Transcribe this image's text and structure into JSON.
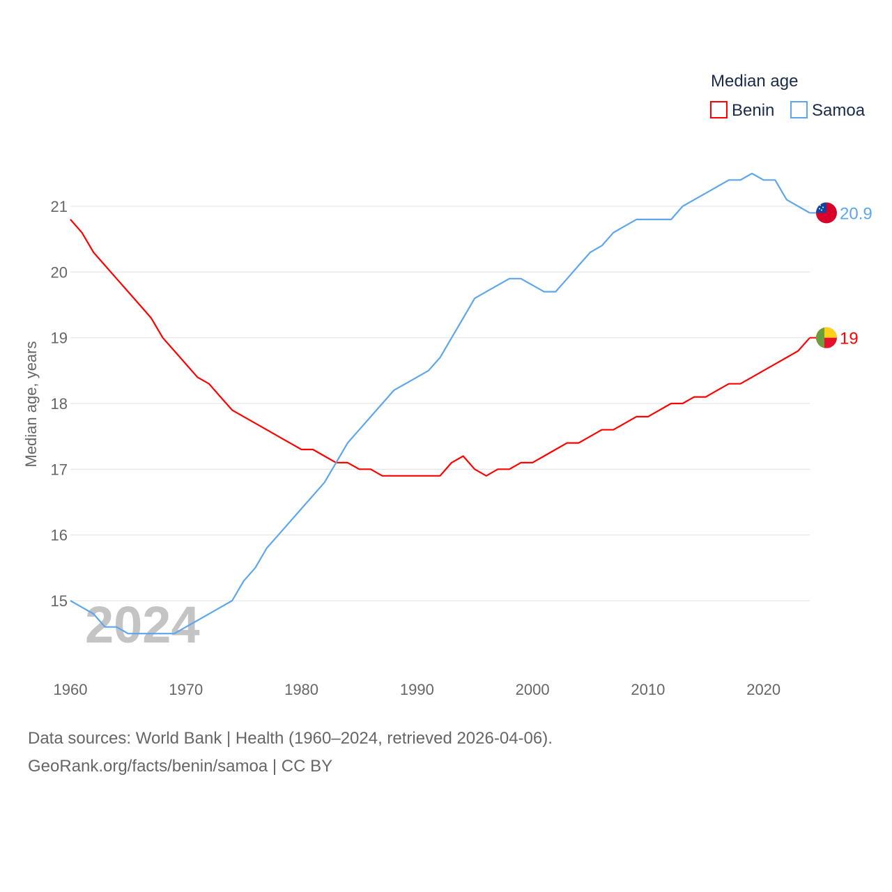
{
  "chart_data": {
    "type": "line",
    "ylabel": "Median age, years",
    "xlabel": "",
    "x": [
      1960,
      1961,
      1962,
      1963,
      1964,
      1965,
      1966,
      1967,
      1968,
      1969,
      1970,
      1971,
      1972,
      1973,
      1974,
      1975,
      1976,
      1977,
      1978,
      1979,
      1980,
      1981,
      1982,
      1983,
      1984,
      1985,
      1986,
      1987,
      1988,
      1989,
      1990,
      1991,
      1992,
      1993,
      1994,
      1995,
      1996,
      1997,
      1998,
      1999,
      2000,
      2001,
      2002,
      2003,
      2004,
      2005,
      2006,
      2007,
      2008,
      2009,
      2010,
      2011,
      2012,
      2013,
      2014,
      2015,
      2016,
      2017,
      2018,
      2019,
      2020,
      2021,
      2022,
      2023,
      2024
    ],
    "xlim": [
      1960,
      2024
    ],
    "ylim": [
      14.2,
      21.8
    ],
    "xticks": [
      "1960",
      "1970",
      "1980",
      "1990",
      "2000",
      "2010",
      "2020"
    ],
    "yticks": [
      "15",
      "16",
      "17",
      "18",
      "19",
      "20",
      "21"
    ],
    "grid": true,
    "legend": {
      "title": "Median age",
      "placement": "top-right"
    },
    "watermark_year": "2024",
    "series": [
      {
        "name": "Benin",
        "color": "#ff0000",
        "end_label": "19",
        "flag": "benin-flag",
        "values": [
          20.8,
          20.6,
          20.3,
          20.1,
          19.9,
          19.7,
          19.5,
          19.3,
          19.0,
          18.8,
          18.6,
          18.4,
          18.3,
          18.1,
          17.9,
          17.8,
          17.7,
          17.6,
          17.5,
          17.4,
          17.3,
          17.3,
          17.2,
          17.1,
          17.1,
          17.0,
          17.0,
          16.9,
          16.9,
          16.9,
          16.9,
          16.9,
          16.9,
          17.1,
          17.2,
          17.0,
          16.9,
          17.0,
          17.0,
          17.1,
          17.1,
          17.2,
          17.3,
          17.4,
          17.4,
          17.5,
          17.6,
          17.6,
          17.7,
          17.8,
          17.8,
          17.9,
          18.0,
          18.0,
          18.1,
          18.1,
          18.2,
          18.3,
          18.3,
          18.4,
          18.5,
          18.6,
          18.7,
          18.8,
          19.0
        ]
      },
      {
        "name": "Samoa",
        "color": "#5ea6ec",
        "end_label": "20.9",
        "flag": "samoa-flag",
        "values": [
          15.0,
          14.9,
          14.8,
          14.6,
          14.6,
          14.5,
          14.5,
          14.5,
          14.5,
          14.5,
          14.6,
          14.7,
          14.8,
          14.9,
          15.0,
          15.3,
          15.5,
          15.8,
          16.0,
          16.2,
          16.4,
          16.6,
          16.8,
          17.1,
          17.4,
          17.6,
          17.8,
          18.0,
          18.2,
          18.3,
          18.4,
          18.5,
          18.7,
          19.0,
          19.3,
          19.6,
          19.7,
          19.8,
          19.9,
          19.9,
          19.8,
          19.7,
          19.7,
          19.9,
          20.1,
          20.3,
          20.4,
          20.6,
          20.7,
          20.8,
          20.8,
          20.8,
          20.8,
          21.0,
          21.1,
          21.2,
          21.3,
          21.4,
          21.4,
          21.5,
          21.4,
          21.4,
          21.1,
          21.0,
          20.9
        ]
      }
    ]
  },
  "footer": {
    "line1": "Data sources: World Bank | Health (1960–2024, retrieved 2026-04-06).",
    "line2": "GeoRank.org/facts/benin/samoa | CC BY"
  }
}
